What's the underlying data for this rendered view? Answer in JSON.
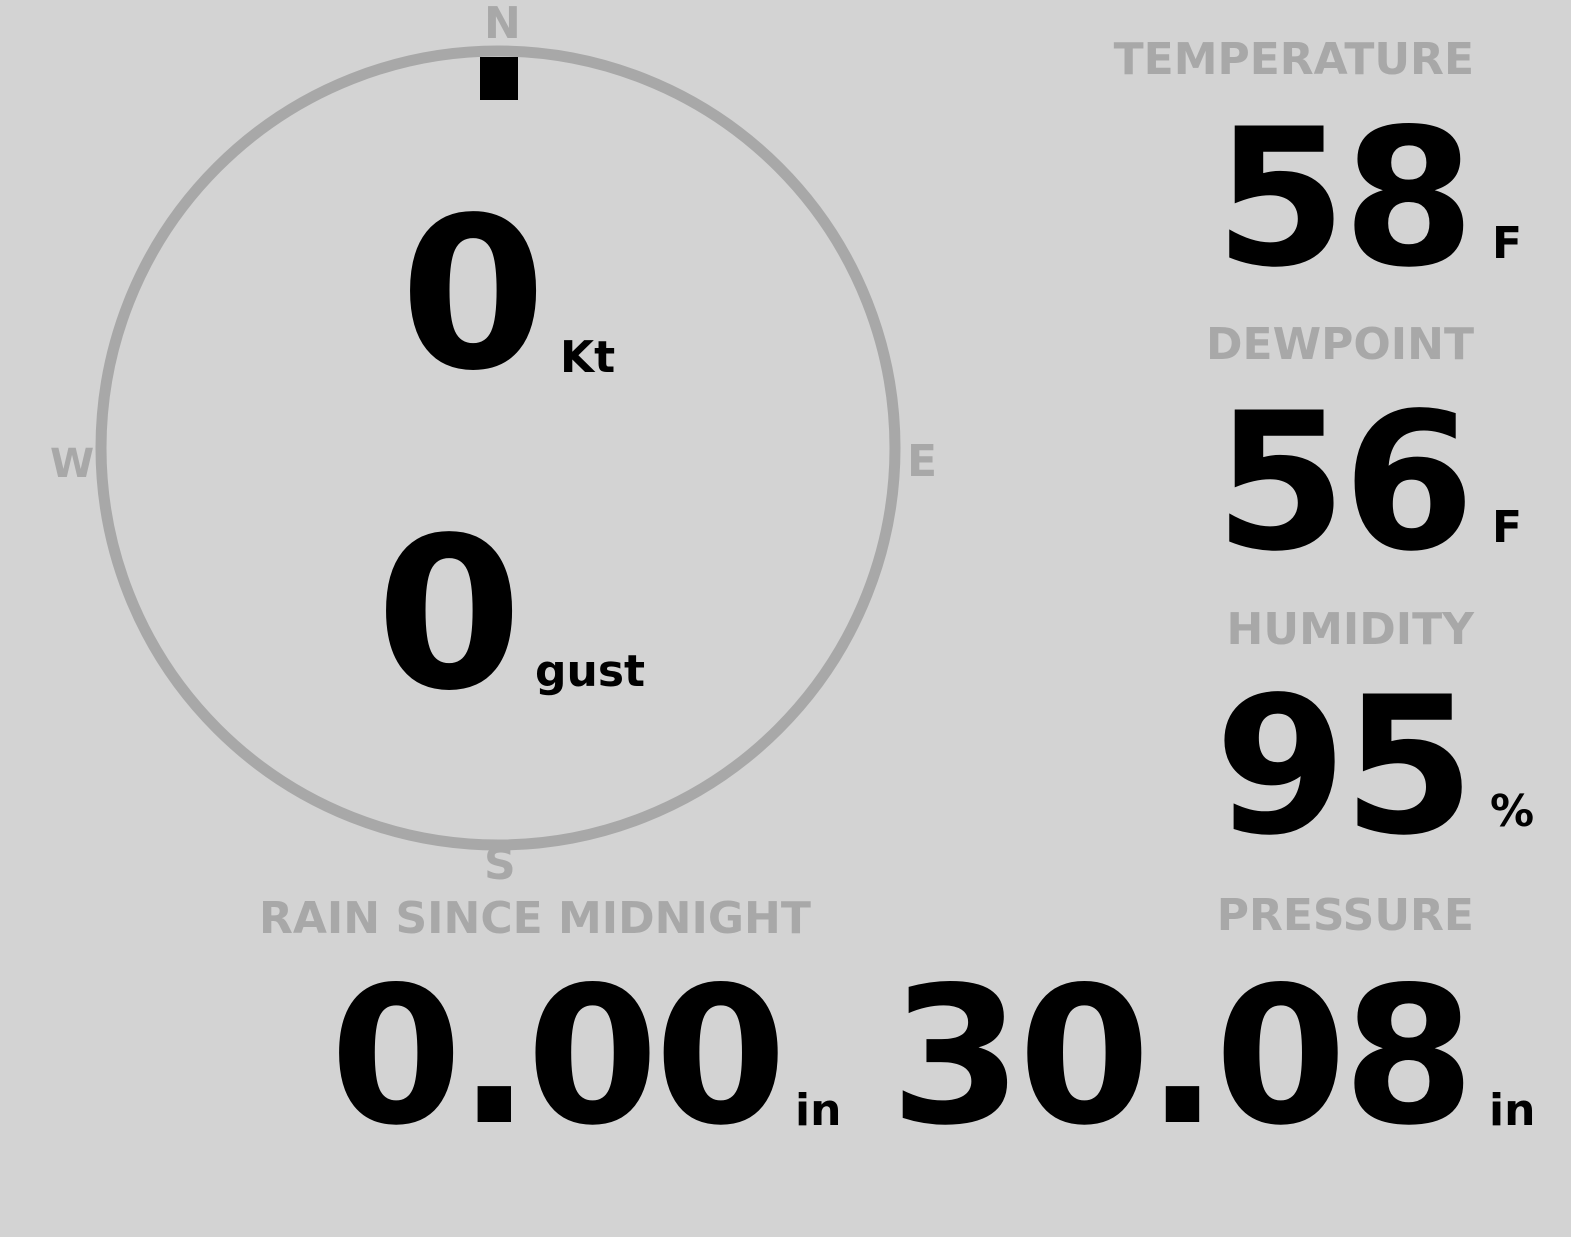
{
  "wind": {
    "cardinals": {
      "n": "N",
      "e": "E",
      "s": "S",
      "w": "W"
    },
    "direction_deg": 0,
    "speed": "0",
    "speed_unit": "Kt",
    "gust": "0",
    "gust_unit": "gust"
  },
  "temperature": {
    "label": "TEMPERATURE",
    "value": "58",
    "unit": "F"
  },
  "dewpoint": {
    "label": "DEWPOINT",
    "value": "56",
    "unit": "F"
  },
  "humidity": {
    "label": "HUMIDITY",
    "value": "95",
    "unit": "%"
  },
  "rain": {
    "label": "RAIN SINCE MIDNIGHT",
    "value": "0.00",
    "unit": "in"
  },
  "pressure": {
    "label": "PRESSURE",
    "value": "30.08",
    "unit": "in"
  },
  "colors": {
    "background": "#d3d3d3",
    "label": "#a8a8a8",
    "value": "#000000"
  }
}
